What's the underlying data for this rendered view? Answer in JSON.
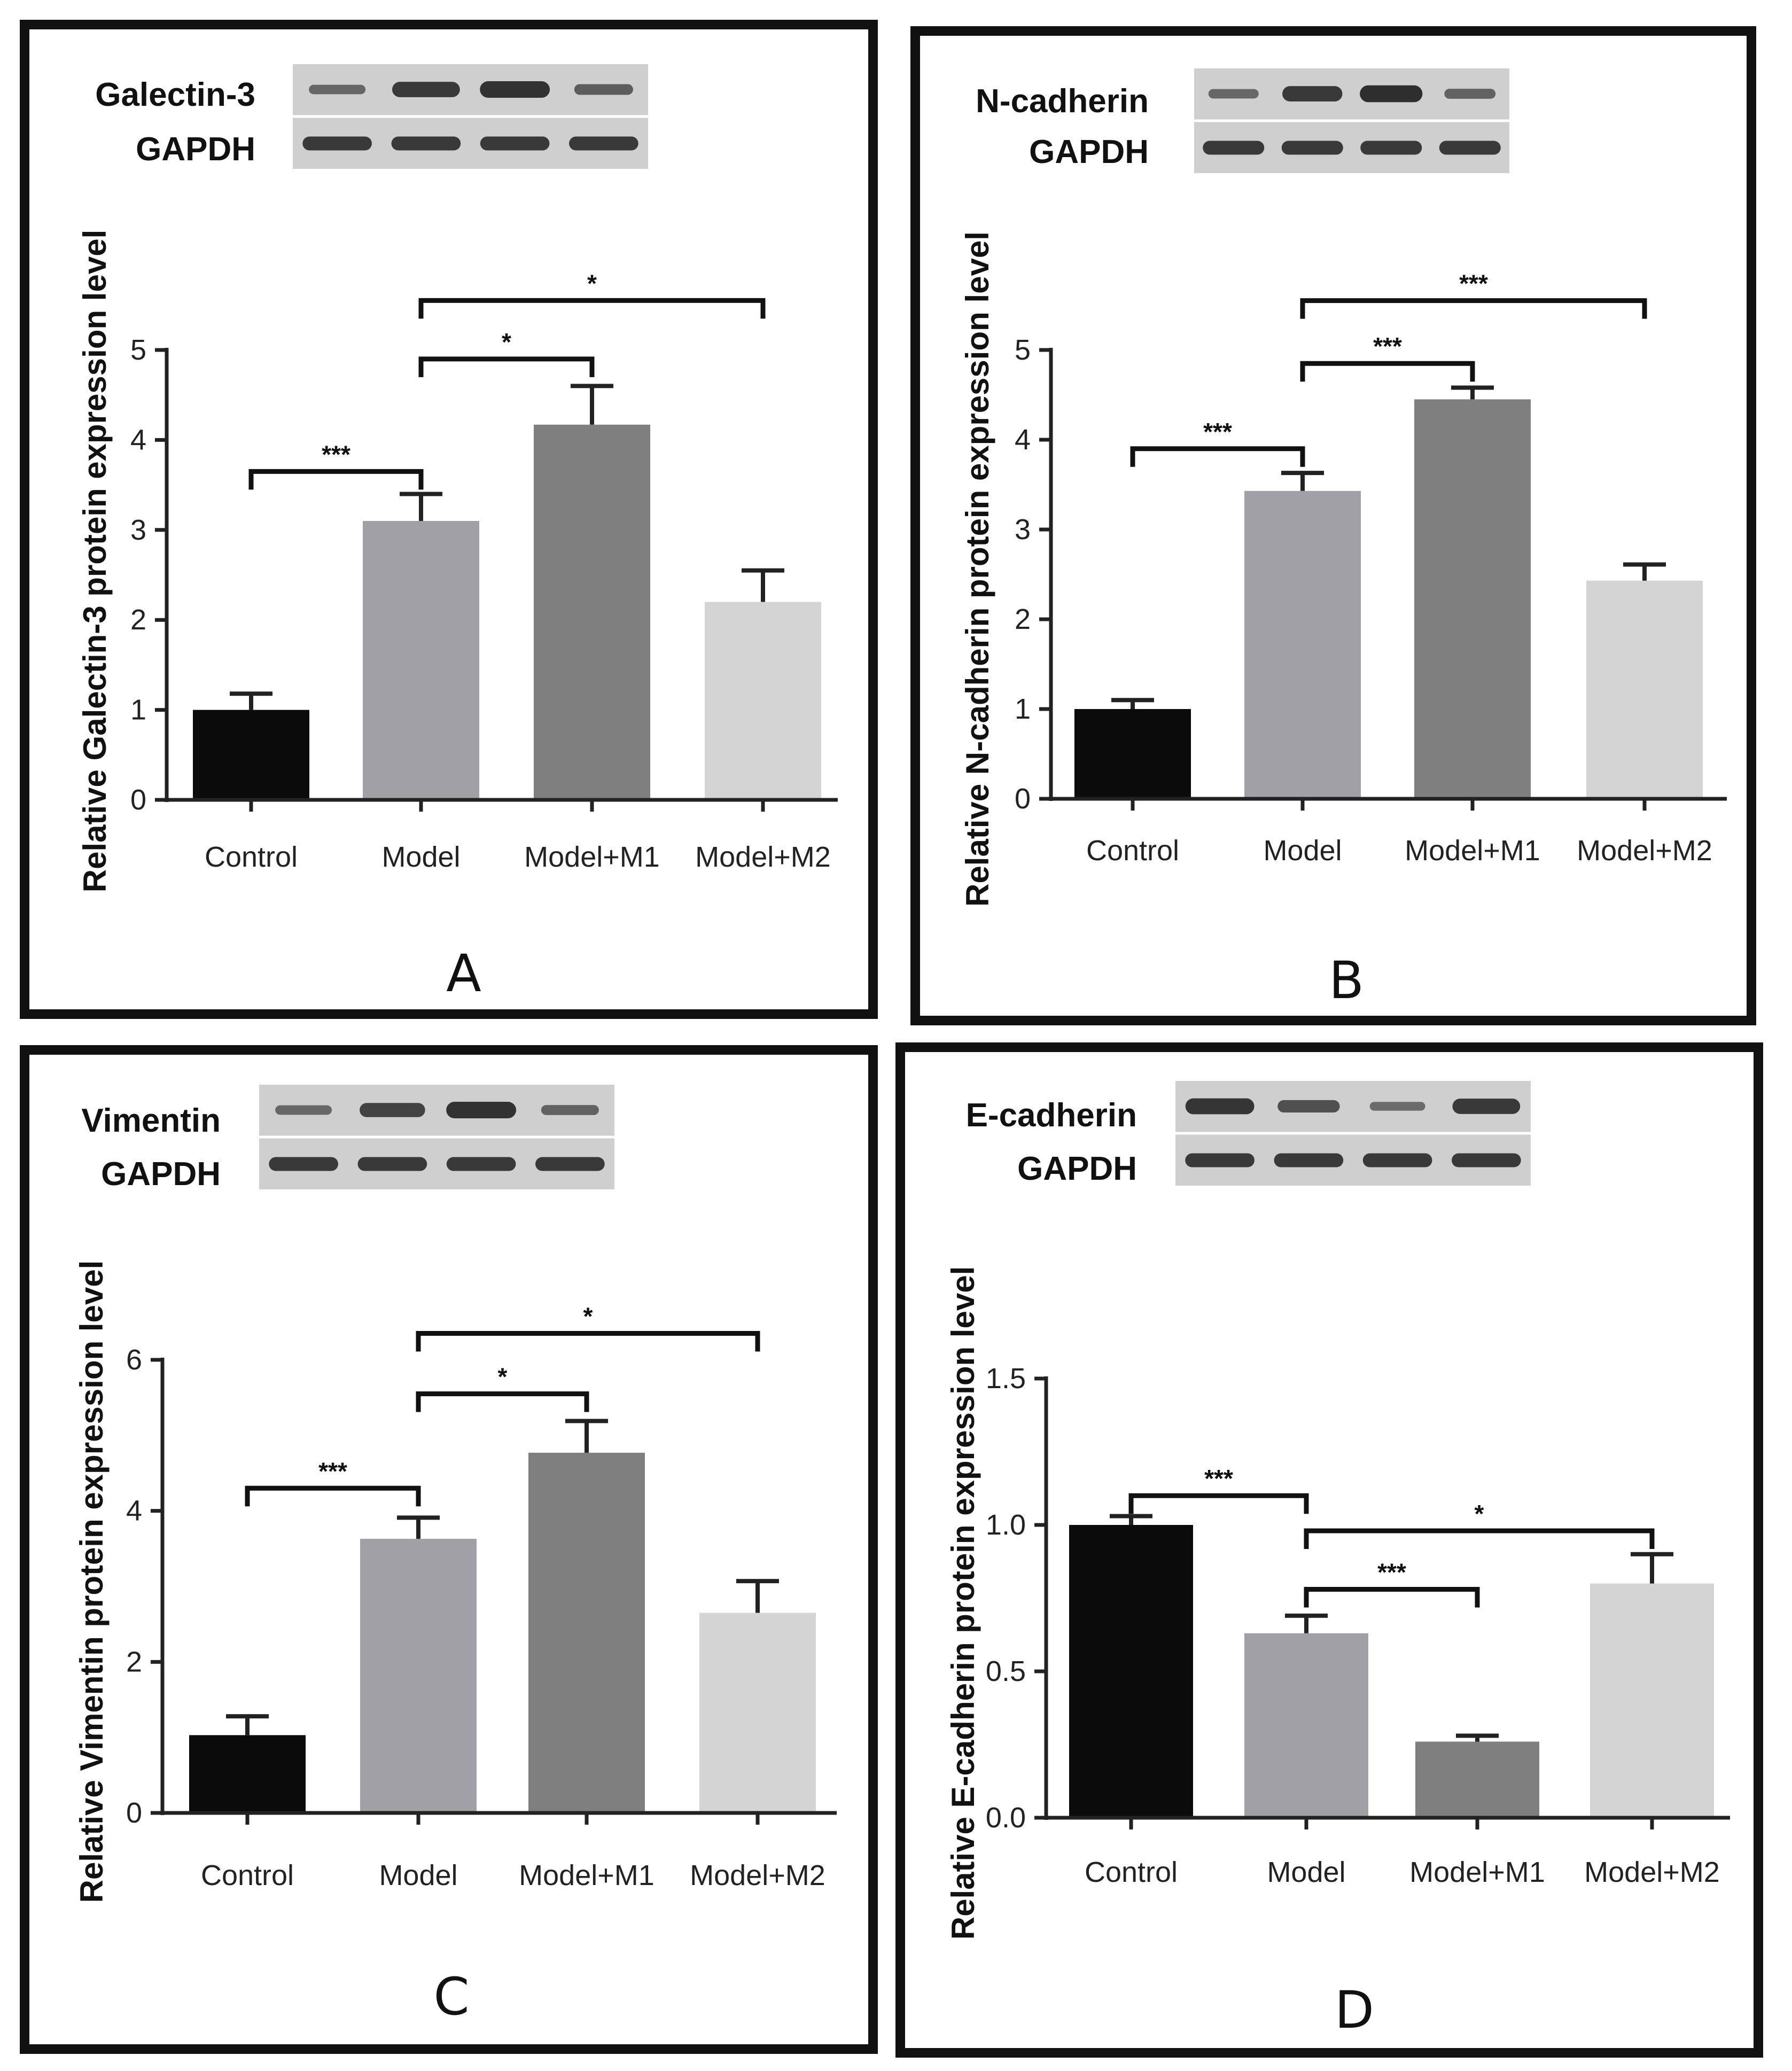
{
  "figure": {
    "colors": {
      "Control": "#0b0b0b",
      "Model": "#a0a0a6",
      "Model+M1": "#7f7f7f",
      "Model+M2": "#d4d4d4"
    }
  },
  "chart_data": [
    {
      "panel": "A",
      "type": "bar",
      "blot_labels": [
        "Galectin-3",
        "GAPDH"
      ],
      "blot_intensity": {
        "target": [
          0.35,
          0.85,
          0.95,
          0.45
        ],
        "gapdh": [
          0.85,
          0.85,
          0.85,
          0.85
        ]
      },
      "categories": [
        "Control",
        "Model",
        "Model+M1",
        "Model+M2"
      ],
      "values": [
        1.0,
        3.1,
        4.17,
        2.2
      ],
      "errors": [
        0.18,
        0.3,
        0.43,
        0.35
      ],
      "ylabel": "Relative Galectin-3 protein expression level",
      "ylim": [
        0,
        5
      ],
      "yticks": [
        0,
        1,
        2,
        3,
        4,
        5
      ],
      "tick_labels": [
        "0",
        "1",
        "2",
        "3",
        "4",
        "5"
      ],
      "comparisons": [
        {
          "from": 0,
          "to": 1,
          "label": "***",
          "y": 3.65
        },
        {
          "from": 1,
          "to": 2,
          "label": "*",
          "y": 4.9
        },
        {
          "from": 1,
          "to": 3,
          "label": "*",
          "y": 5.55
        }
      ]
    },
    {
      "panel": "B",
      "type": "bar",
      "blot_labels": [
        "N-cadherin",
        "GAPDH"
      ],
      "blot_intensity": {
        "target": [
          0.35,
          0.85,
          0.98,
          0.4
        ],
        "gapdh": [
          0.85,
          0.85,
          0.85,
          0.85
        ]
      },
      "categories": [
        "Control",
        "Model",
        "Model+M1",
        "Model+M2"
      ],
      "values": [
        1.0,
        3.43,
        4.45,
        2.43
      ],
      "errors": [
        0.1,
        0.2,
        0.13,
        0.18
      ],
      "ylabel": "Relative N-cadherin protein expression level",
      "ylim": [
        0,
        5
      ],
      "yticks": [
        0,
        1,
        2,
        3,
        4,
        5
      ],
      "tick_labels": [
        "0",
        "1",
        "2",
        "3",
        "4",
        "5"
      ],
      "comparisons": [
        {
          "from": 0,
          "to": 1,
          "label": "***",
          "y": 3.9
        },
        {
          "from": 1,
          "to": 2,
          "label": "***",
          "y": 4.85
        },
        {
          "from": 1,
          "to": 3,
          "label": "***",
          "y": 5.55
        }
      ]
    },
    {
      "panel": "C",
      "type": "bar",
      "blot_labels": [
        "Vimentin",
        "GAPDH"
      ],
      "blot_intensity": {
        "target": [
          0.35,
          0.75,
          0.95,
          0.4
        ],
        "gapdh": [
          0.85,
          0.85,
          0.85,
          0.85
        ]
      },
      "categories": [
        "Control",
        "Model",
        "Model+M1",
        "Model+M2"
      ],
      "values": [
        1.03,
        3.63,
        4.77,
        2.65
      ],
      "errors": [
        0.25,
        0.28,
        0.42,
        0.42
      ],
      "ylabel": "Relative Vimentin protein expression level",
      "ylim": [
        0,
        6
      ],
      "yticks": [
        0,
        2,
        4,
        6
      ],
      "tick_labels": [
        "0",
        "2",
        "4",
        "6"
      ],
      "comparisons": [
        {
          "from": 0,
          "to": 1,
          "label": "***",
          "y": 4.3
        },
        {
          "from": 1,
          "to": 2,
          "label": "*",
          "y": 5.55
        },
        {
          "from": 1,
          "to": 3,
          "label": "*",
          "y": 6.35
        }
      ]
    },
    {
      "panel": "D",
      "type": "bar",
      "blot_labels": [
        "E-cadherin",
        "GAPDH"
      ],
      "blot_intensity": {
        "target": [
          0.9,
          0.6,
          0.3,
          0.85
        ],
        "gapdh": [
          0.85,
          0.85,
          0.85,
          0.85
        ]
      },
      "categories": [
        "Control",
        "Model",
        "Model+M1",
        "Model+M2"
      ],
      "values": [
        1.0,
        0.63,
        0.26,
        0.8
      ],
      "errors": [
        0.03,
        0.06,
        0.02,
        0.1
      ],
      "ylabel": "Relative E-cadherin protein expression level",
      "ylim": [
        0,
        1.5
      ],
      "yticks": [
        0,
        0.5,
        1.0,
        1.5
      ],
      "tick_labels": [
        "0.0",
        "0.5",
        "1.0",
        "1.5"
      ],
      "comparisons": [
        {
          "from": 0,
          "to": 1,
          "label": "***",
          "y": 1.1
        },
        {
          "from": 1,
          "to": 2,
          "label": "***",
          "y": 0.78
        },
        {
          "from": 1,
          "to": 3,
          "label": "*",
          "y": 0.98
        }
      ]
    }
  ]
}
